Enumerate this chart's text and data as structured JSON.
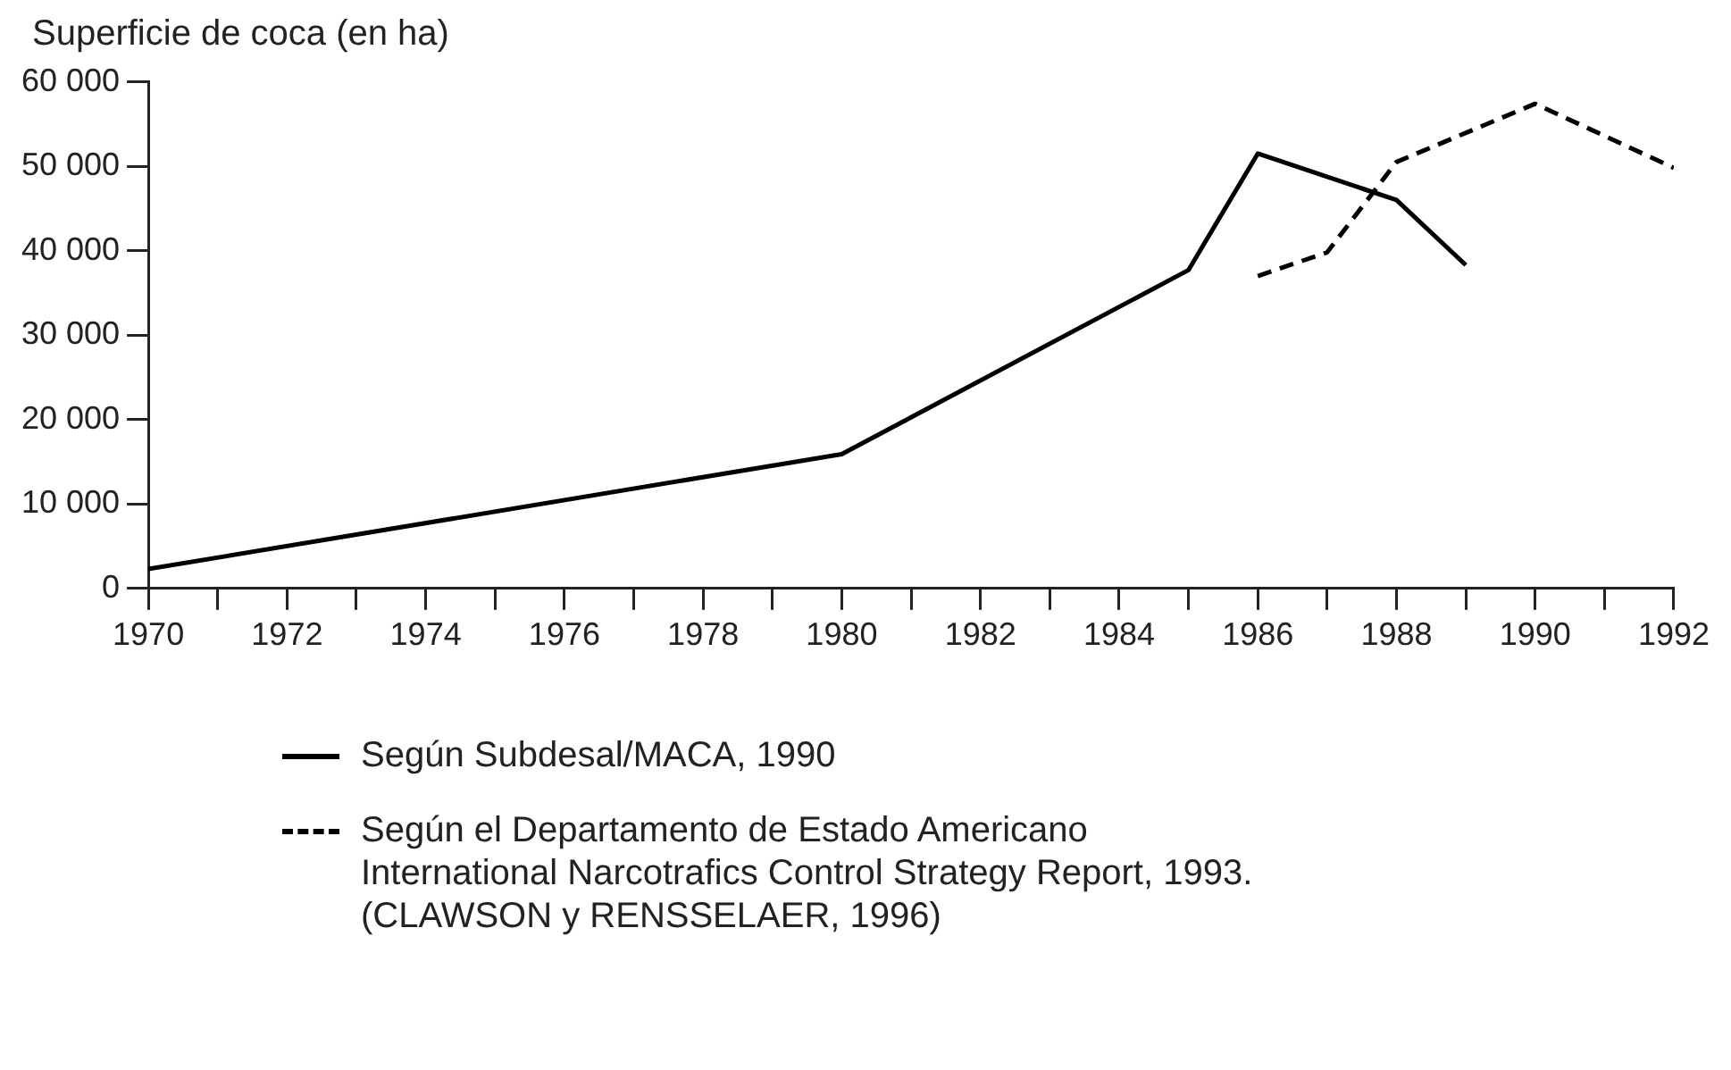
{
  "chart_data": {
    "type": "line",
    "ylabel": "Superficie de coca (en ha)",
    "marker": "none",
    "grid": false,
    "legend": "bottom",
    "xlim": [
      1970,
      1992
    ],
    "xticks": [
      1970,
      {
        "value": 1971,
        "label": null
      },
      1972,
      {
        "value": 1973,
        "label": null
      },
      1974,
      {
        "value": 1975,
        "label": null
      },
      1976,
      {
        "value": 1977,
        "label": null
      },
      1978,
      {
        "value": 1979,
        "label": null
      },
      1980,
      {
        "value": 1981,
        "label": null
      },
      1982,
      {
        "value": 1983,
        "label": null
      },
      1984,
      {
        "value": 1985,
        "label": null
      },
      1986,
      {
        "value": 1987,
        "label": null
      },
      1988,
      {
        "value": 1989,
        "label": null
      },
      1990,
      {
        "value": 1991,
        "label": null
      },
      1992
    ],
    "ylim": [
      0,
      60000
    ],
    "yticks": [
      0,
      {
        "value": 10000,
        "label": "10 000"
      },
      {
        "value": 20000,
        "label": "20 000"
      },
      {
        "value": 30000,
        "label": "30 000"
      },
      {
        "value": 40000,
        "label": "40 000"
      },
      {
        "value": 50000,
        "label": "50 000"
      },
      {
        "value": 60000,
        "label": "60 000"
      }
    ],
    "series": [
      {
        "name": "Según Subdesal/MACA, 1990",
        "color": "#000000",
        "line_style": "solid",
        "x": [
          1970,
          1980,
          1985,
          1986,
          1988,
          1989
        ],
        "values": [
          2300,
          15900,
          37700,
          51500,
          46000,
          38300
        ]
      },
      {
        "name": "Según el Departamento de Estado Americano\nInternational Narcotrafics Control Strategy Report, 1993.\n(CLAWSON y RENSSELAER, 1996)",
        "color": "#000000",
        "line_style": "dashed",
        "x": [
          1986,
          1987,
          1988,
          1990,
          1992
        ],
        "values": [
          37000,
          39800,
          50500,
          57400,
          49800
        ]
      }
    ]
  }
}
